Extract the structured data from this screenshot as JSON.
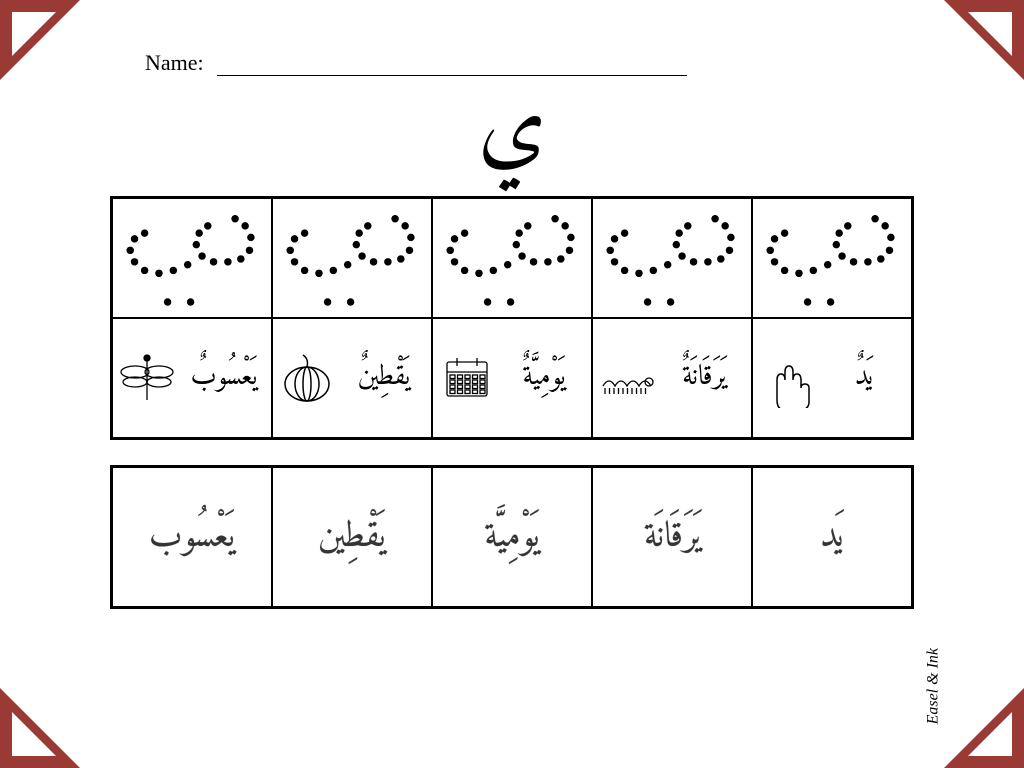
{
  "corner_color": "#9a3a34",
  "corner_inner": "#ffffff",
  "name_label": "Name:",
  "main_letter": "ي",
  "attribution": "Easel & Ink",
  "tracing_row_count": 5,
  "vocab": [
    {
      "word": "يَعْسُوبٌ",
      "icon": "dragonfly"
    },
    {
      "word": "يَقْطِينٌ",
      "icon": "pumpkin"
    },
    {
      "word": "يَوْمِيَّةٌ",
      "icon": "calendar"
    },
    {
      "word": "يَرَقَانَةٌ",
      "icon": "caterpillar"
    },
    {
      "word": "يَدٌ",
      "icon": "hand"
    }
  ],
  "trace_words": [
    "يَعْسُوب",
    "يَقْطِين",
    "يَوْمِيَّة",
    "يَرَقَانَة",
    "يَد"
  ]
}
